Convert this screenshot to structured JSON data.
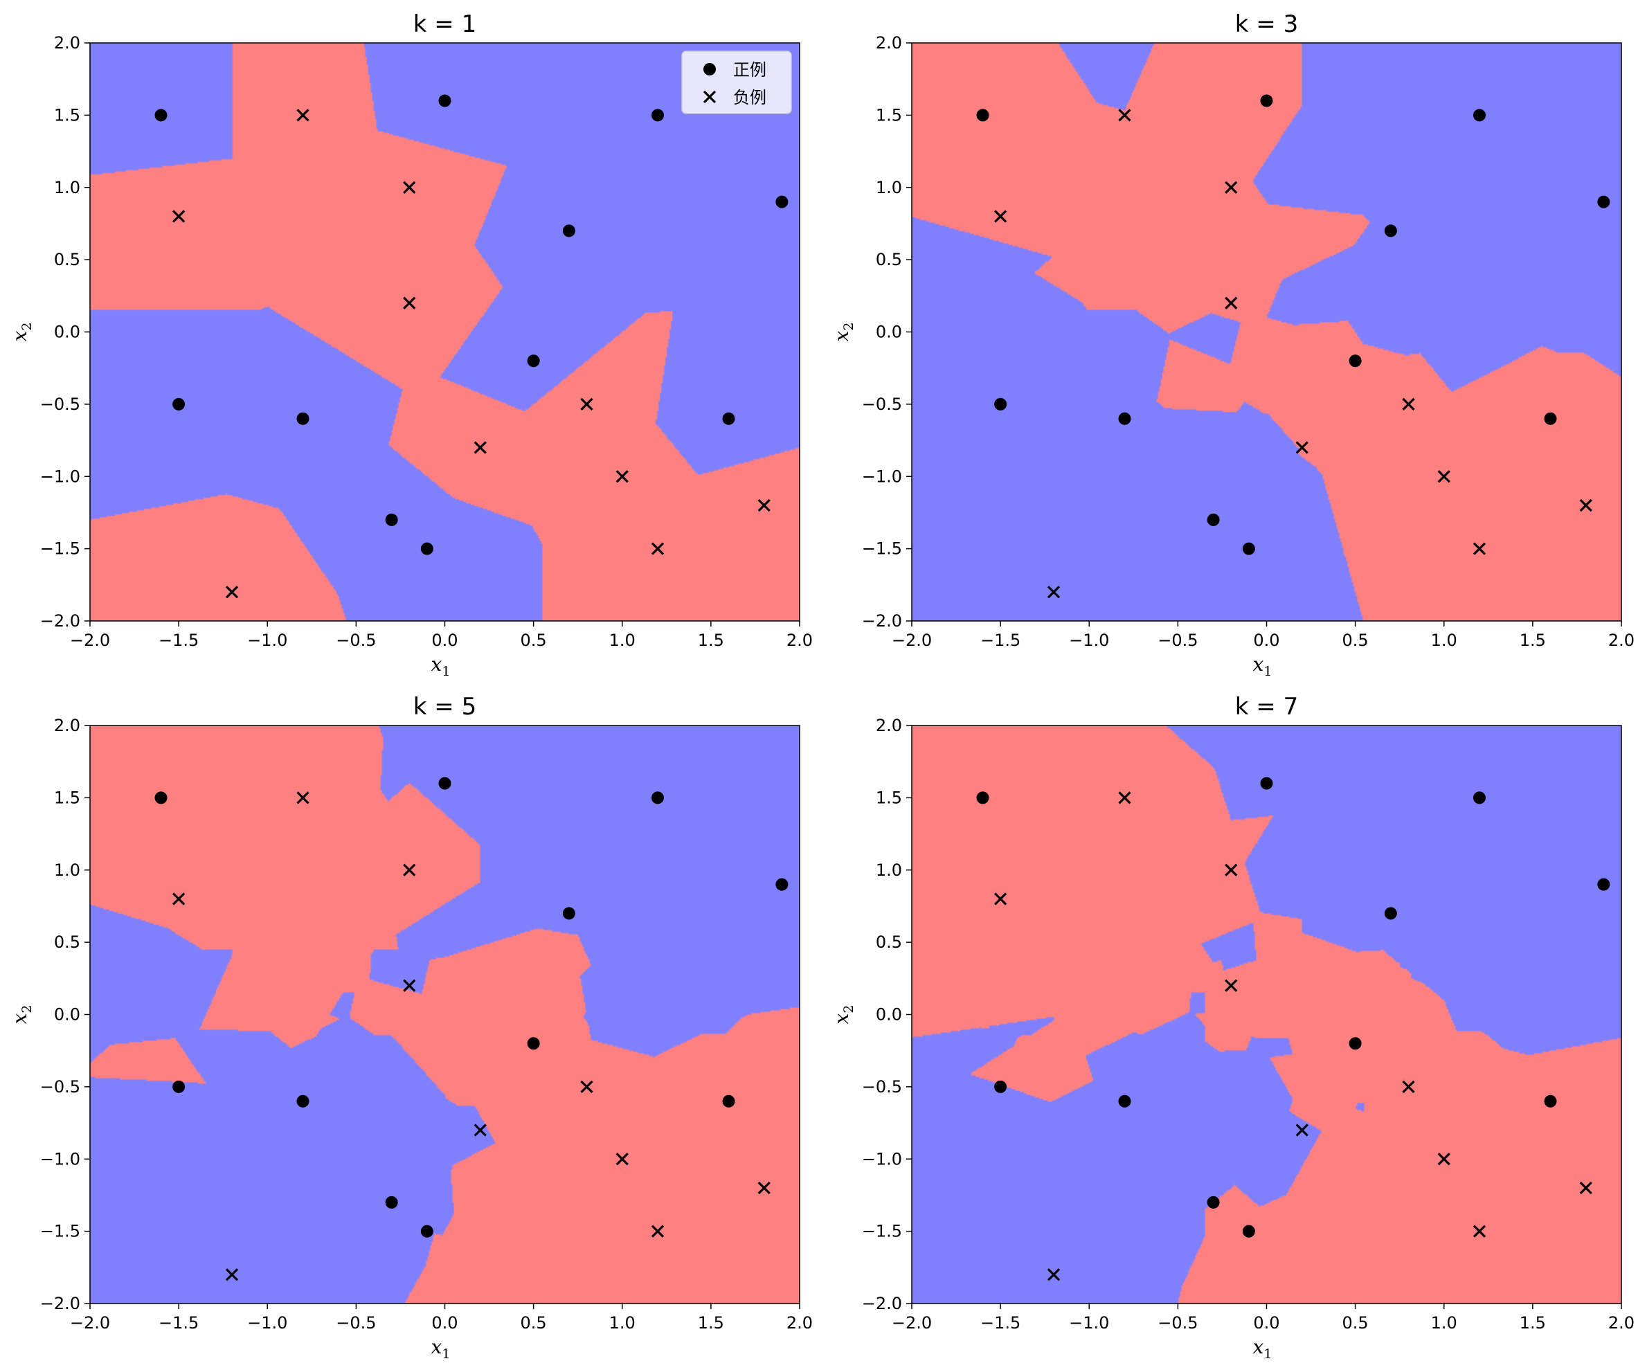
{
  "colors": {
    "positive_region": "#8080ff",
    "negative_region": "#ff8080",
    "marker": "#000000"
  },
  "legend": {
    "placement": "top-right of first panel",
    "entries": [
      {
        "label": "正例",
        "marker": "circle"
      },
      {
        "label": "负例",
        "marker": "x"
      }
    ]
  },
  "chart_data": [
    {
      "type": "scatter",
      "title": "k = 1",
      "k": 1,
      "xlabel_base": "x",
      "xlabel_sub": "1",
      "ylabel_base": "x",
      "ylabel_sub": "2",
      "xlim": [
        -2.0,
        2.0
      ],
      "ylim": [
        -2.0,
        2.0
      ],
      "xticks": [
        -2.0,
        -1.5,
        -1.0,
        -0.5,
        0.0,
        0.5,
        1.0,
        1.5,
        2.0
      ],
      "yticks": [
        -2.0,
        -1.5,
        -1.0,
        -0.5,
        0.0,
        0.5,
        1.0,
        1.5,
        2.0
      ],
      "show_legend": true,
      "background": "decision regions"
    },
    {
      "type": "scatter",
      "title": "k = 3",
      "k": 3,
      "xlabel_base": "x",
      "xlabel_sub": "1",
      "ylabel_base": "x",
      "ylabel_sub": "2",
      "xlim": [
        -2.0,
        2.0
      ],
      "ylim": [
        -2.0,
        2.0
      ],
      "xticks": [
        -2.0,
        -1.5,
        -1.0,
        -0.5,
        0.0,
        0.5,
        1.0,
        1.5,
        2.0
      ],
      "yticks": [
        -2.0,
        -1.5,
        -1.0,
        -0.5,
        0.0,
        0.5,
        1.0,
        1.5,
        2.0
      ],
      "show_legend": false,
      "background": "decision regions"
    },
    {
      "type": "scatter",
      "title": "k = 5",
      "k": 5,
      "xlabel_base": "x",
      "xlabel_sub": "1",
      "ylabel_base": "x",
      "ylabel_sub": "2",
      "xlim": [
        -2.0,
        2.0
      ],
      "ylim": [
        -2.0,
        2.0
      ],
      "xticks": [
        -2.0,
        -1.5,
        -1.0,
        -0.5,
        0.0,
        0.5,
        1.0,
        1.5,
        2.0
      ],
      "yticks": [
        -2.0,
        -1.5,
        -1.0,
        -0.5,
        0.0,
        0.5,
        1.0,
        1.5,
        2.0
      ],
      "show_legend": false,
      "background": "decision regions"
    },
    {
      "type": "scatter",
      "title": "k = 7",
      "k": 7,
      "xlabel_base": "x",
      "xlabel_sub": "1",
      "ylabel_base": "x",
      "ylabel_sub": "2",
      "xlim": [
        -2.0,
        2.0
      ],
      "ylim": [
        -2.0,
        2.0
      ],
      "xticks": [
        -2.0,
        -1.5,
        -1.0,
        -0.5,
        0.0,
        0.5,
        1.0,
        1.5,
        2.0
      ],
      "yticks": [
        -2.0,
        -1.5,
        -1.0,
        -0.5,
        0.0,
        0.5,
        1.0,
        1.5,
        2.0
      ],
      "show_legend": false,
      "background": "decision regions"
    }
  ],
  "points": {
    "positive": [
      [
        -1.6,
        1.5
      ],
      [
        0.0,
        1.6
      ],
      [
        1.2,
        1.5
      ],
      [
        1.9,
        0.9
      ],
      [
        0.7,
        0.7
      ],
      [
        0.5,
        -0.2
      ],
      [
        -1.5,
        -0.5
      ],
      [
        -0.8,
        -0.6
      ],
      [
        1.6,
        -0.6
      ],
      [
        -0.3,
        -1.3
      ],
      [
        -0.1,
        -1.5
      ]
    ],
    "negative": [
      [
        -0.8,
        1.5
      ],
      [
        -0.2,
        1.0
      ],
      [
        -1.5,
        0.8
      ],
      [
        -0.2,
        0.2
      ],
      [
        0.8,
        -0.5
      ],
      [
        0.2,
        -0.8
      ],
      [
        1.0,
        -1.0
      ],
      [
        1.8,
        -1.2
      ],
      [
        1.2,
        -1.5
      ],
      [
        -1.2,
        -1.8
      ]
    ]
  }
}
